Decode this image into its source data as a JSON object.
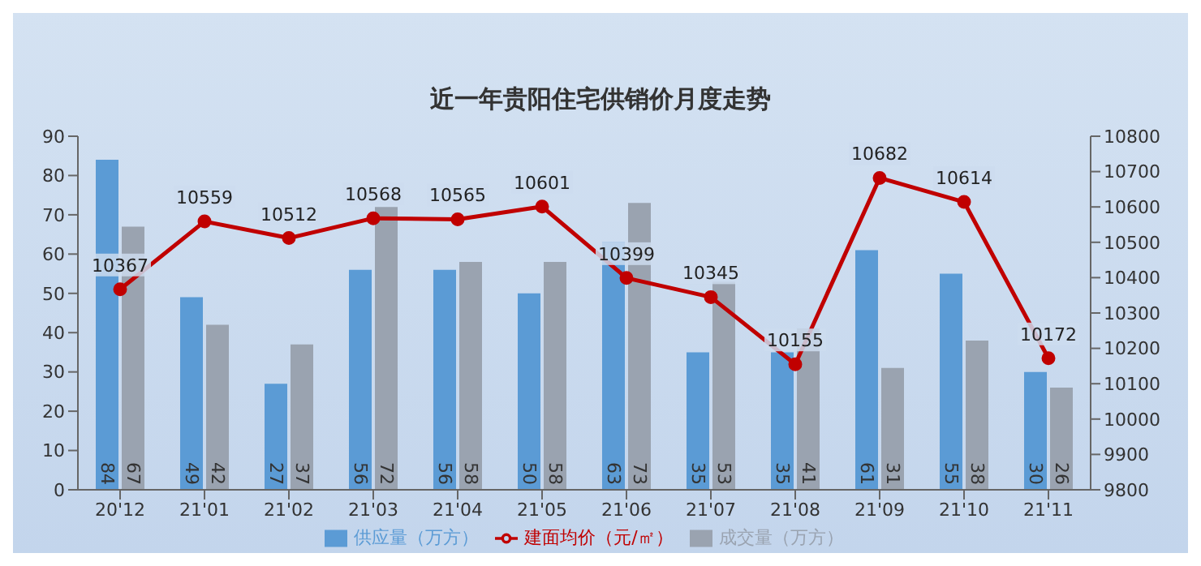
{
  "chart_data": {
    "type": "bar",
    "title": "近一年贵阳住宅供销价月度走势",
    "categories": [
      "20'12",
      "21'01",
      "21'02",
      "21'03",
      "21'04",
      "21'05",
      "21'06",
      "21'07",
      "21'08",
      "21'09",
      "21'10",
      "21'11"
    ],
    "series": [
      {
        "name": "供应量（万方）",
        "color": "#5b9bd5",
        "values": [
          84,
          49,
          27,
          56,
          56,
          50,
          63,
          35,
          35,
          61,
          55,
          30
        ]
      },
      {
        "name": "成交量（万方）",
        "color": "#9aa3b0",
        "values": [
          67,
          42,
          37,
          72,
          58,
          58,
          73,
          53,
          41,
          31,
          38,
          26
        ]
      },
      {
        "name": "建面均价（元/㎡）",
        "type": "line",
        "axis": "y2",
        "color": "#c00000",
        "marker": "circle",
        "values": [
          10367,
          10559,
          10512,
          10568,
          10565,
          10601,
          10399,
          10345,
          10155,
          10682,
          10614,
          10172
        ]
      }
    ],
    "ylim": [
      0,
      90
    ],
    "yticks": [
      0,
      10,
      20,
      30,
      40,
      50,
      60,
      70,
      80,
      90
    ],
    "y2lim": [
      9800,
      10800
    ],
    "y2ticks": [
      9800,
      9900,
      10000,
      10100,
      10200,
      10300,
      10400,
      10500,
      10600,
      10700,
      10800
    ],
    "data_labels": true,
    "legend": "bottom"
  }
}
